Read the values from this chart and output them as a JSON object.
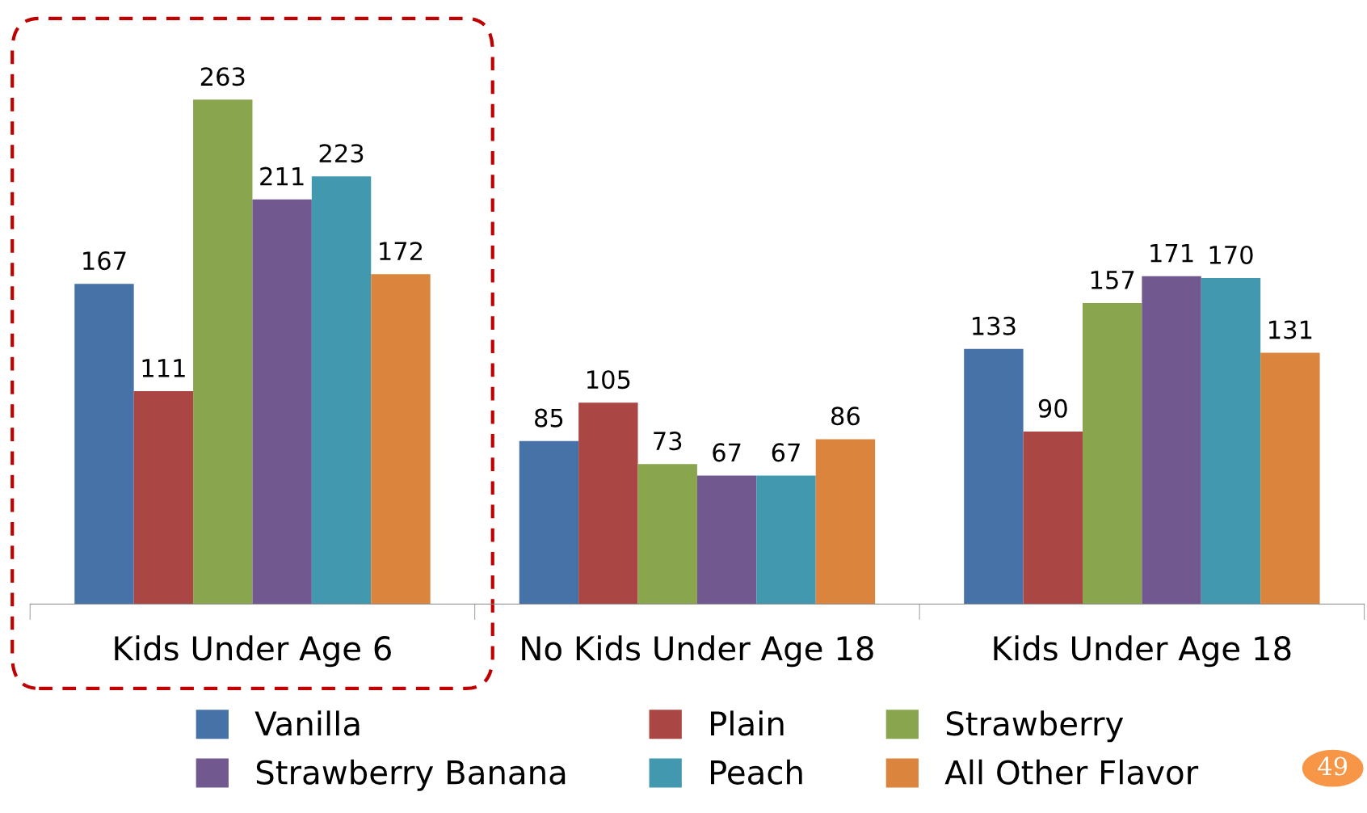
{
  "chart_data": {
    "type": "bar",
    "categories": [
      "Kids Under Age 6",
      "No Kids Under Age 18",
      "Kids Under Age 18"
    ],
    "series": [
      {
        "name": "Vanilla",
        "color": "#4672a8",
        "values": [
          167,
          85,
          133
        ]
      },
      {
        "name": "Plain",
        "color": "#aa4644",
        "values": [
          111,
          105,
          90
        ]
      },
      {
        "name": "Strawberry",
        "color": "#89a54e",
        "values": [
          263,
          73,
          157
        ]
      },
      {
        "name": "Strawberry Banana",
        "color": "#71588f",
        "values": [
          211,
          67,
          171
        ]
      },
      {
        "name": "Peach",
        "color": "#4198af",
        "values": [
          223,
          67,
          170
        ]
      },
      {
        "name": "All Other Flavor",
        "color": "#db843d",
        "values": [
          172,
          86,
          131
        ]
      }
    ],
    "data_labels": true,
    "legend": "bottom",
    "grid": false,
    "tick_labels": "x",
    "annotations": [
      "49"
    ]
  }
}
